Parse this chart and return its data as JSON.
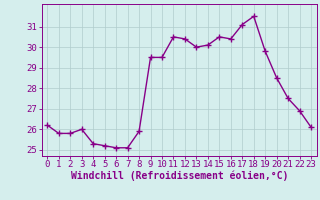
{
  "x": [
    0,
    1,
    2,
    3,
    4,
    5,
    6,
    7,
    8,
    9,
    10,
    11,
    12,
    13,
    14,
    15,
    16,
    17,
    18,
    19,
    20,
    21,
    22,
    23
  ],
  "y": [
    26.2,
    25.8,
    25.8,
    26.0,
    25.3,
    25.2,
    25.1,
    25.1,
    25.9,
    29.5,
    29.5,
    30.5,
    30.4,
    30.0,
    30.1,
    30.5,
    30.4,
    31.1,
    31.5,
    29.8,
    28.5,
    27.5,
    26.9,
    26.1
  ],
  "line_color": "#880088",
  "marker": "+",
  "marker_size": 4,
  "linewidth": 1.0,
  "bg_color": "#d5eeed",
  "grid_color": "#b0cccc",
  "xlabel": "Windchill (Refroidissement éolien,°C)",
  "xlabel_color": "#880088",
  "xlabel_fontsize": 7,
  "tick_color": "#880088",
  "tick_fontsize": 6.5,
  "ylim": [
    24.7,
    32.1
  ],
  "xlim": [
    -0.5,
    23.5
  ],
  "yticks": [
    25,
    26,
    27,
    28,
    29,
    30,
    31
  ],
  "xticks": [
    0,
    1,
    2,
    3,
    4,
    5,
    6,
    7,
    8,
    9,
    10,
    11,
    12,
    13,
    14,
    15,
    16,
    17,
    18,
    19,
    20,
    21,
    22,
    23
  ]
}
